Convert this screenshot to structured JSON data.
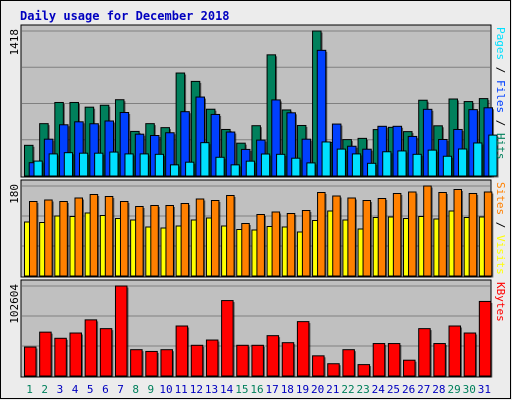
{
  "title": "Daily usage for December 2018",
  "colors": {
    "background": "#ececec",
    "plot": "#c0c0c0",
    "title": "#0000c0",
    "hits": "#00805c",
    "files": "#0040ff",
    "pages": "#00e0ff",
    "visits": "#ffff00",
    "sites": "#ff8000",
    "kbytes": "#ff0000",
    "weekend_label": "#00805c",
    "weekday_label": "#0000c0"
  },
  "legends": {
    "top": [
      "Pages",
      "Files",
      "Hits"
    ],
    "middle": [
      "Sites",
      "Visits"
    ],
    "bottom": [
      "KBytes"
    ],
    "separator": " / "
  },
  "chart_data": {
    "type": "bar",
    "categories": [
      "1",
      "2",
      "3",
      "4",
      "5",
      "6",
      "7",
      "8",
      "9",
      "10",
      "11",
      "12",
      "13",
      "14",
      "15",
      "16",
      "17",
      "18",
      "19",
      "20",
      "21",
      "22",
      "23",
      "24",
      "25",
      "26",
      "27",
      "28",
      "29",
      "30",
      "31"
    ],
    "weekend_days": [
      "1",
      "2",
      "8",
      "9",
      "15",
      "16",
      "22",
      "23",
      "29",
      "30"
    ],
    "panels": [
      {
        "name": "hits-files-pages",
        "max_label": "1418",
        "ymax": 1418,
        "series": [
          {
            "name": "Hits",
            "values": [
              300,
              512,
              719,
              719,
              673,
              692,
              746,
              436,
              512,
              473,
              1007,
              925,
              653,
              455,
              321,
              492,
              1185,
              646,
              494,
              1418,
              329,
              356,
              368,
              454,
              476,
              434,
              741,
              491,
              753,
              728,
              757
            ]
          },
          {
            "name": "Files",
            "values": [
              130,
              360,
              501,
              530,
              511,
              538,
              621,
              409,
              396,
              423,
              629,
              772,
              602,
              430,
              260,
              351,
              744,
              618,
              360,
              1229,
              508,
              291,
              262,
              486,
              486,
              387,
              652,
              357,
              455,
              649,
              667
            ]
          },
          {
            "name": "Pages",
            "values": [
              146,
              216,
              228,
              223,
              223,
              234,
              216,
              216,
              212,
              109,
              135,
              326,
              183,
              109,
              145,
              215,
              212,
              174,
              128,
              333,
              263,
              216,
              124,
              237,
              245,
              212,
              253,
              193,
              264,
              323,
              400
            ]
          }
        ]
      },
      {
        "name": "sites-visits",
        "max_label": "180",
        "ymax": 180,
        "series": [
          {
            "name": "Visits",
            "values": [
              108,
              107,
              120,
              119,
              126,
              121,
              115,
              112,
              98,
              96,
              100,
              112,
              116,
              100,
              93,
              92,
              99,
              98,
              88,
              111,
              130,
              112,
              94,
              117,
              118,
              115,
              119,
              114,
              130,
              117,
              118
            ]
          },
          {
            "name": "Sites",
            "values": [
              149,
              152,
              149,
              156,
              163,
              159,
              149,
              139,
              141,
              141,
              145,
              154,
              151,
              161,
              105,
              123,
              128,
              125,
              131,
              167,
              160,
              156,
              151,
              155,
              165,
              168,
              180,
              167,
              173,
              165,
              168
            ]
          }
        ]
      },
      {
        "name": "kbytes",
        "max_label": "102604",
        "ymax": 102604,
        "series": [
          {
            "name": "KBytes",
            "values": [
              33000,
              50000,
              43000,
              49000,
              64000,
              54000,
              102604,
              30000,
              28000,
              30000,
              57000,
              35000,
              41000,
              86000,
              35000,
              35000,
              46000,
              38000,
              62000,
              23000,
              14000,
              30000,
              13000,
              37000,
              37000,
              18000,
              54000,
              37000,
              57000,
              49000,
              85000
            ]
          }
        ]
      }
    ]
  }
}
